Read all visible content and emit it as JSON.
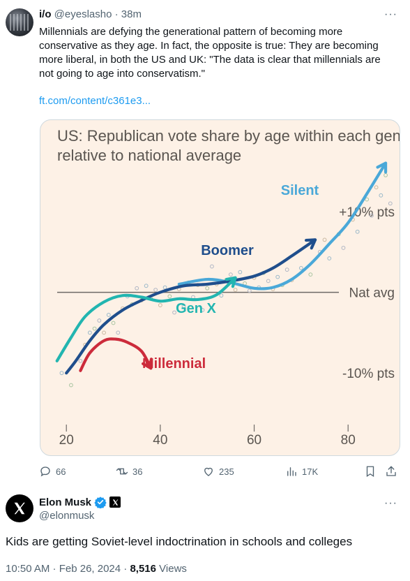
{
  "quoted_tweet": {
    "name": "i/o",
    "handle": "@eyeslasho",
    "time": "· 38m",
    "text": "Millennials are defying the generational pattern of becoming more conservative as they age. In fact, the opposite is true: They are becoming more liberal, in both the US and UK: \"The data is clear that millennials are not going to age into conservatism.\"",
    "link": "ft.com/content/c361e3...",
    "more_icon": "more-horizontal-icon"
  },
  "chart_data": {
    "type": "line",
    "title": "US: Republican vote share by age within each generation, relative to national average",
    "xlabel": "",
    "ylabel": "",
    "xlim": [
      17,
      92
    ],
    "ylim": [
      -15,
      17
    ],
    "x_ticks": [
      20,
      40,
      60,
      80
    ],
    "x_tick_labels": [
      "20",
      "40",
      "60",
      "80"
    ],
    "y_ticks": [
      10,
      0,
      -10
    ],
    "y_tick_labels": [
      "+10% pts",
      "Nat avg",
      "-10% pts"
    ],
    "series": [
      {
        "name": "Silent",
        "color": "#4aa8d8",
        "x": [
          44,
          50,
          55,
          60,
          64,
          68,
          72,
          76,
          80,
          84,
          88
        ],
        "y": [
          1.0,
          1.6,
          1.2,
          0.5,
          0.6,
          1.6,
          3.5,
          6.0,
          8.6,
          12.2,
          16.0
        ]
      },
      {
        "name": "Boomer",
        "color": "#1f4e8c",
        "x": [
          20,
          22,
          25,
          28,
          32,
          36,
          40,
          45,
          50,
          55,
          60,
          64,
          68,
          73
        ],
        "y": [
          -10.0,
          -8.5,
          -6.0,
          -4.0,
          -2.2,
          -1.0,
          0.0,
          0.8,
          1.0,
          1.4,
          2.0,
          3.0,
          4.5,
          6.5
        ]
      },
      {
        "name": "Gen X",
        "color": "#22b5b0",
        "x": [
          18,
          21,
          24,
          28,
          32,
          36,
          40,
          44,
          48,
          52,
          56
        ],
        "y": [
          -8.5,
          -5.6,
          -3.0,
          -1.2,
          -0.4,
          -0.6,
          -1.1,
          -0.8,
          -0.9,
          -0.3,
          1.8
        ]
      },
      {
        "name": "Millennial",
        "color": "#cc2b3b",
        "x": [
          23,
          25,
          28,
          30.5,
          33,
          36,
          38
        ],
        "y": [
          -9.7,
          -7.5,
          -6.0,
          -5.8,
          -6.2,
          -7.3,
          -9.4
        ]
      }
    ],
    "scatter_points": [
      {
        "x": 19,
        "y": -10.0
      },
      {
        "x": 21,
        "y": -11.5
      },
      {
        "x": 23,
        "y": -8.5
      },
      {
        "x": 24,
        "y": -6.5
      },
      {
        "x": 25,
        "y": -5.0
      },
      {
        "x": 26,
        "y": -4.5
      },
      {
        "x": 27,
        "y": -3.5
      },
      {
        "x": 28,
        "y": -5.0
      },
      {
        "x": 29,
        "y": -2.8
      },
      {
        "x": 30,
        "y": -3.8
      },
      {
        "x": 31,
        "y": -5.0
      },
      {
        "x": 32,
        "y": -2.0
      },
      {
        "x": 33,
        "y": -0.5
      },
      {
        "x": 34,
        "y": -1.5
      },
      {
        "x": 35,
        "y": 0.5
      },
      {
        "x": 36,
        "y": -1.0
      },
      {
        "x": 37,
        "y": 0.8
      },
      {
        "x": 38,
        "y": -0.8
      },
      {
        "x": 39,
        "y": 0.3
      },
      {
        "x": 40,
        "y": -1.6
      },
      {
        "x": 41,
        "y": 0.6
      },
      {
        "x": 42,
        "y": -0.5
      },
      {
        "x": 43,
        "y": -2.5
      },
      {
        "x": 44,
        "y": 0.4
      },
      {
        "x": 45,
        "y": -1.7
      },
      {
        "x": 46,
        "y": 1.2
      },
      {
        "x": 47,
        "y": -0.6
      },
      {
        "x": 48,
        "y": 0.9
      },
      {
        "x": 49,
        "y": -2.2
      },
      {
        "x": 50,
        "y": 0.5
      },
      {
        "x": 51,
        "y": 3.2
      },
      {
        "x": 52,
        "y": 1.0
      },
      {
        "x": 53,
        "y": -0.4
      },
      {
        "x": 54,
        "y": 1.5
      },
      {
        "x": 55,
        "y": 2.2
      },
      {
        "x": 56,
        "y": 0.3
      },
      {
        "x": 57,
        "y": 2.5
      },
      {
        "x": 58,
        "y": 1.1
      },
      {
        "x": 59,
        "y": 0.2
      },
      {
        "x": 60,
        "y": 1.8
      },
      {
        "x": 61,
        "y": 0.6
      },
      {
        "x": 62,
        "y": 2.4
      },
      {
        "x": 63,
        "y": 1.4
      },
      {
        "x": 64,
        "y": 0.4
      },
      {
        "x": 65,
        "y": 1.9
      },
      {
        "x": 66,
        "y": 0.9
      },
      {
        "x": 67,
        "y": 2.8
      },
      {
        "x": 68,
        "y": 1.5
      },
      {
        "x": 70,
        "y": 3.0
      },
      {
        "x": 72,
        "y": 2.2
      },
      {
        "x": 74,
        "y": 5.0
      },
      {
        "x": 75,
        "y": 6.5
      },
      {
        "x": 76,
        "y": 4.2
      },
      {
        "x": 78,
        "y": 7.2
      },
      {
        "x": 79,
        "y": 5.5
      },
      {
        "x": 81,
        "y": 9.0
      },
      {
        "x": 82,
        "y": 7.5
      },
      {
        "x": 84,
        "y": 11.5
      },
      {
        "x": 85,
        "y": 9.5
      },
      {
        "x": 86,
        "y": 13.0
      },
      {
        "x": 87,
        "y": 12.0
      },
      {
        "x": 88,
        "y": 14.5
      },
      {
        "x": 89,
        "y": 11.0
      }
    ],
    "grid": false,
    "legend": "inline labels"
  },
  "actions": {
    "reply_count": "66",
    "retweet_count": "36",
    "like_count": "235",
    "views_count": "17K",
    "icons": [
      "reply-icon",
      "retweet-icon",
      "like-icon",
      "views-icon",
      "bookmark-icon",
      "share-icon"
    ]
  },
  "main_tweet": {
    "name": "Elon Musk",
    "handle": "@elonmusk",
    "text": "Kids are getting Soviet-level indoctrination in schools and colleges",
    "timestamp": "10:50 AM · Feb 26, 2024 · ",
    "views_count": "8,516",
    "views_label": " Views"
  },
  "colors": {
    "link": "#1d9bf0",
    "secondary_text": "#536471",
    "verified": "#1d9bf0",
    "chart_background": "#fdf1e6"
  }
}
